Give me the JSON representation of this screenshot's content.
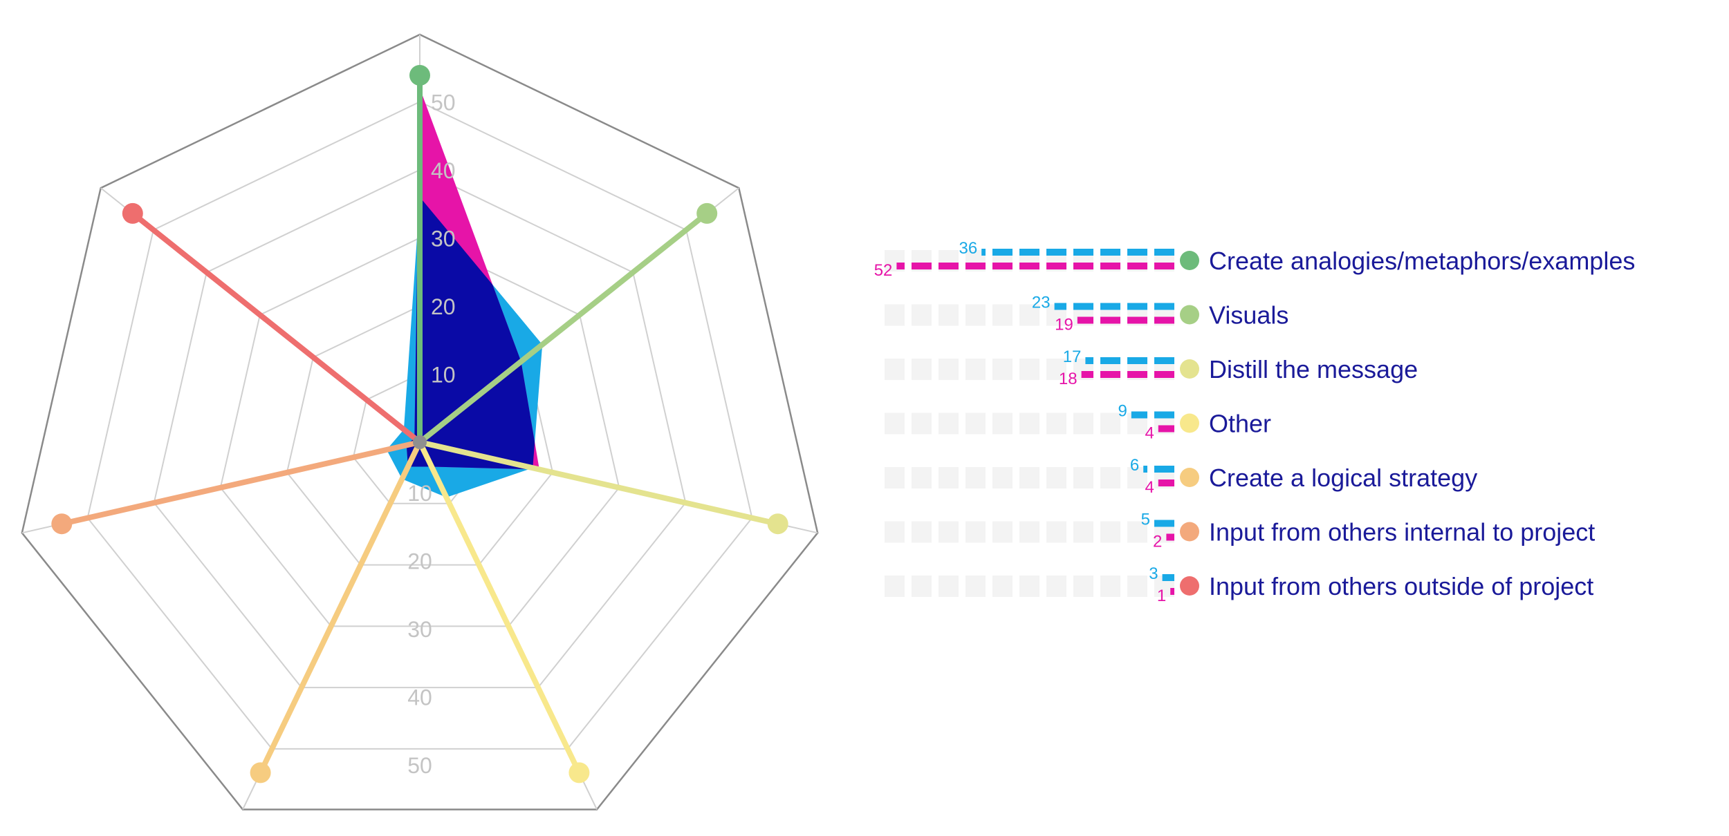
{
  "chart_data": {
    "type": "radar",
    "ticks": [
      10,
      20,
      30,
      40,
      50
    ],
    "rmax": 55,
    "categories": [
      {
        "name": "Create analogies/metaphors/examples",
        "color": "#6dbb7b",
        "blue": 36,
        "pink": 52
      },
      {
        "name": "Visuals",
        "color": "#a6cf86",
        "blue": 23,
        "pink": 19
      },
      {
        "name": "Distill the message",
        "color": "#e4e38f",
        "blue": 17,
        "pink": 18
      },
      {
        "name": "Other",
        "color": "#f8e88c",
        "blue": 9,
        "pink": 4
      },
      {
        "name": "Create a logical strategy",
        "color": "#f6cc80",
        "blue": 6,
        "pink": 4
      },
      {
        "name": "Input from others internal to project",
        "color": "#f3a97c",
        "blue": 5,
        "pink": 2
      },
      {
        "name": "Input from others outside of project",
        "color": "#ee6e6e",
        "blue": 3,
        "pink": 1
      }
    ],
    "series": [
      {
        "key": "blue",
        "color": "#19a9e6"
      },
      {
        "key": "pink",
        "color": "#e614a8"
      }
    ],
    "overlap_color": "#0a0aa6",
    "grid_color": "#d0d0d0",
    "frame_color": "#8a8a8a"
  }
}
